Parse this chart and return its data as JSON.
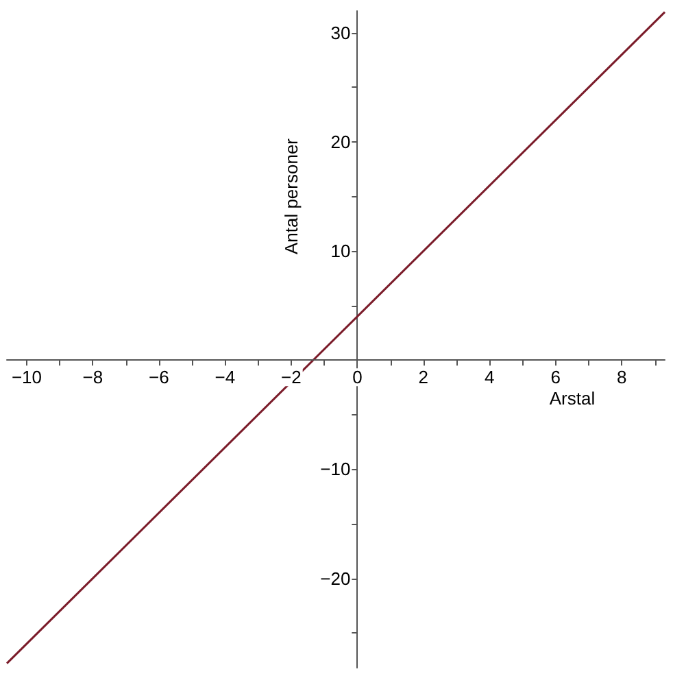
{
  "chart_data": {
    "type": "line",
    "xlabel": "Arstal",
    "ylabel": "Antal personer",
    "x": [
      -10.6,
      9.3
    ],
    "series": [
      {
        "color": "#7b1c2a",
        "values": [
          -27.8,
          31.9
        ]
      }
    ],
    "xlim": [
      -10.6,
      9.3
    ],
    "ylim": [
      -28.2,
      32
    ],
    "xticks": [
      {
        "value": -10,
        "label": "−10"
      },
      {
        "value": -9,
        "label": null
      },
      {
        "value": -8,
        "label": "−8"
      },
      {
        "value": -7,
        "label": null
      },
      {
        "value": -6,
        "label": "−6"
      },
      {
        "value": -5,
        "label": null
      },
      {
        "value": -4,
        "label": "−4"
      },
      {
        "value": -3,
        "label": null
      },
      {
        "value": -2,
        "label": "−2"
      },
      {
        "value": -1,
        "label": null
      },
      {
        "value": 0,
        "label": "0"
      },
      {
        "value": 1,
        "label": null
      },
      2,
      {
        "value": 3,
        "label": null
      },
      4,
      {
        "value": 5,
        "label": null
      },
      6,
      {
        "value": 7,
        "label": null
      },
      8,
      {
        "value": 9,
        "label": null
      }
    ],
    "yticks": [
      {
        "value": -25,
        "label": null
      },
      {
        "value": -20,
        "label": "−20"
      },
      {
        "value": -15,
        "label": null
      },
      {
        "value": -10,
        "label": "−10"
      },
      {
        "value": -5,
        "label": null
      },
      {
        "value": 5,
        "label": null
      },
      10,
      {
        "value": 15,
        "label": null
      },
      20,
      {
        "value": 25,
        "label": null
      },
      30
    ],
    "marker": "none",
    "line_style": "solid"
  }
}
